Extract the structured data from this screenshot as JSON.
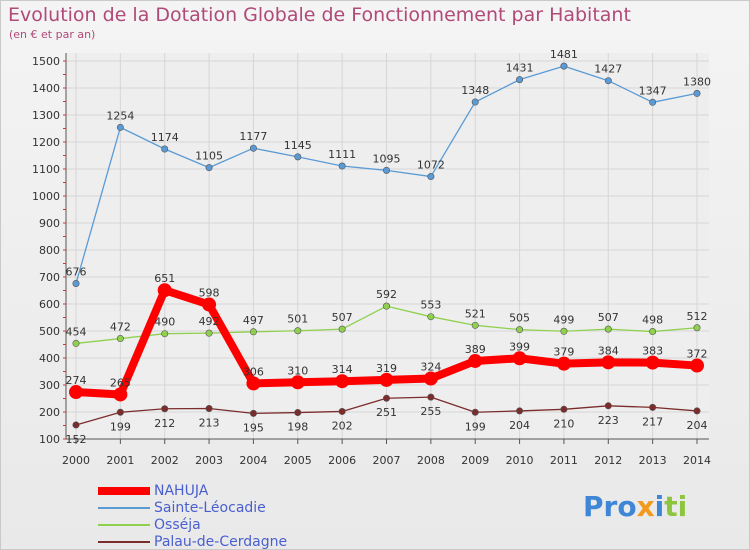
{
  "title": "Evolution de la Dotation Globale de Fonctionnement par Habitant",
  "subtitle": "(en € et par an)",
  "logo": "Proxiti",
  "chart_data": {
    "type": "line",
    "x": [
      "2000",
      "2001",
      "2002",
      "2003",
      "2004",
      "2005",
      "2006",
      "2007",
      "2008",
      "2009",
      "2010",
      "2011",
      "2012",
      "2013",
      "2014"
    ],
    "ylim": [
      100,
      1500
    ],
    "yticks": [
      100,
      200,
      300,
      400,
      500,
      600,
      700,
      800,
      900,
      1000,
      1100,
      1200,
      1300,
      1400,
      1500
    ],
    "grid": true,
    "legend_position": "bottom-left",
    "series": [
      {
        "name": "NAHUJA",
        "color": "#ff0000",
        "values": [
          274,
          265,
          651,
          598,
          306,
          310,
          314,
          319,
          324,
          389,
          399,
          379,
          384,
          383,
          372
        ]
      },
      {
        "name": "Sainte-Léocadie",
        "color": "#5b9bd5",
        "values": [
          676,
          1254,
          1174,
          1105,
          1177,
          1145,
          1111,
          1095,
          1072,
          1348,
          1431,
          1481,
          1427,
          1347,
          1380
        ]
      },
      {
        "name": "Osséja",
        "color": "#8fd14f",
        "values": [
          454,
          472,
          490,
          492,
          497,
          501,
          507,
          592,
          553,
          521,
          505,
          499,
          507,
          498,
          512
        ]
      },
      {
        "name": "Palau-de-Cerdagne",
        "color": "#7b2c2c",
        "values": [
          152,
          199,
          212,
          213,
          195,
          198,
          202,
          251,
          255,
          199,
          204,
          210,
          223,
          217,
          204
        ]
      }
    ]
  }
}
